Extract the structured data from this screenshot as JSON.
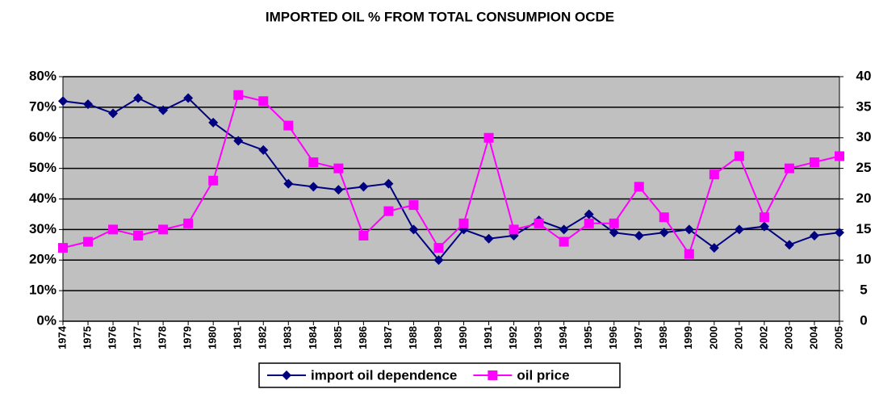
{
  "chart_data": {
    "type": "line",
    "title": "IMPORTED OIL % FROM TOTAL CONSUMPION OCDE",
    "categories": [
      "1974",
      "1975",
      "1976",
      "1977",
      "1978",
      "1979",
      "1980",
      "1981",
      "1982",
      "1983",
      "1984",
      "1985",
      "1986",
      "1987",
      "1988",
      "1989",
      "1990",
      "1991",
      "1992",
      "1993",
      "1994",
      "1995",
      "1996",
      "1997",
      "1998",
      "1999",
      "2000",
      "2001",
      "2002",
      "2003",
      "2004",
      "2005"
    ],
    "series": [
      {
        "name": "import oil dependence",
        "color": "#000080",
        "marker": "diamond",
        "values": [
          72,
          71,
          68,
          73,
          69,
          73,
          65,
          59,
          56,
          45,
          44,
          43,
          44,
          45,
          30,
          20,
          30,
          27,
          28,
          33,
          30,
          35,
          29,
          28,
          29,
          30,
          24,
          30,
          31,
          25,
          28,
          29
        ]
      },
      {
        "name": "oil price",
        "color": "#ff00ff",
        "marker": "square",
        "axis": "y2",
        "values": [
          12,
          13,
          15,
          14,
          15,
          16,
          23,
          37,
          36,
          32,
          26,
          25,
          14,
          18,
          19,
          12,
          16,
          30,
          15,
          16,
          13,
          16,
          16,
          22,
          17,
          11,
          24,
          27,
          17,
          25,
          26,
          27
        ]
      }
    ],
    "ylim": [
      0,
      80
    ],
    "yticks": [
      {
        "value": 0,
        "label": "0%"
      },
      {
        "value": 10,
        "label": "10%"
      },
      {
        "value": 20,
        "label": "20%"
      },
      {
        "value": 30,
        "label": "30%"
      },
      {
        "value": 40,
        "label": "40%"
      },
      {
        "value": 50,
        "label": "50%"
      },
      {
        "value": 60,
        "label": "60%"
      },
      {
        "value": 70,
        "label": "70%"
      },
      {
        "value": 80,
        "label": "80%"
      }
    ],
    "y2lim": [
      0,
      40
    ],
    "y2ticks": [
      0,
      5,
      10,
      15,
      20,
      25,
      30,
      35,
      40
    ],
    "grid": true,
    "plot_background": "#c0c0c0",
    "legend": "bottom"
  }
}
